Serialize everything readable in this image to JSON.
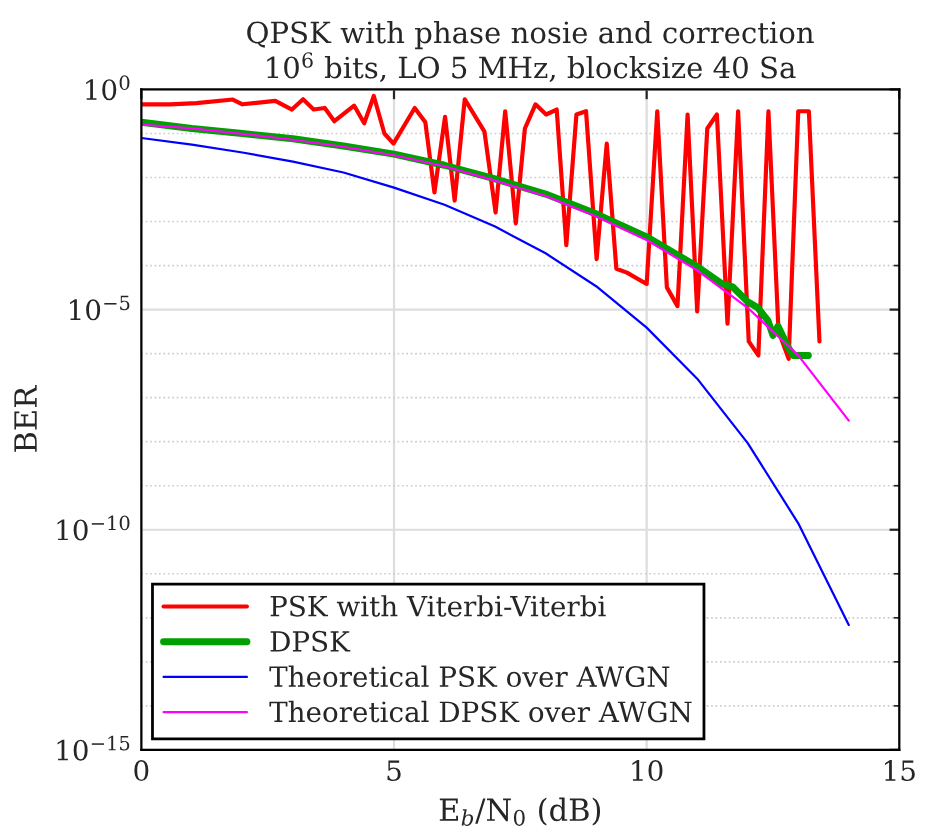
{
  "chart_data": {
    "type": "line",
    "title": "QPSK with phase nosie and correction",
    "subtitle": "10$^{6}$ bits, LO 5 MHz, blocksize 40 Sa",
    "xlabel": "E$_{b}$/N$_{0}$ (dB)",
    "ylabel": "BER",
    "log": "y",
    "xlim": [
      0,
      15
    ],
    "xticks": [
      0,
      5,
      10,
      15
    ],
    "ylim": [
      1e-15,
      1
    ],
    "yticks": [
      {
        "value": 1,
        "label": "10$^{0}$"
      },
      {
        "value": 0.1,
        "label": null
      },
      {
        "value": 0.01,
        "label": null
      },
      {
        "value": 0.001,
        "label": null
      },
      {
        "value": 0.0001,
        "label": null
      },
      {
        "value": 1e-05,
        "label": "10$^{−5}$"
      },
      {
        "value": 1e-06,
        "label": null
      },
      {
        "value": 1e-07,
        "label": null
      },
      {
        "value": 1e-08,
        "label": null
      },
      {
        "value": 1e-09,
        "label": null
      },
      {
        "value": 1e-10,
        "label": "10$^{−10}$"
      },
      {
        "value": 1e-11,
        "label": null
      },
      {
        "value": 1e-12,
        "label": null
      },
      {
        "value": 1e-13,
        "label": null
      },
      {
        "value": 1e-14,
        "label": null
      },
      {
        "value": 1e-15,
        "label": "10$^{−15}$"
      }
    ],
    "grid": true,
    "legend": "bottom left",
    "series": [
      {
        "name": "PSK with Viterbi-Viterbi",
        "color": "#ff0000",
        "x": [
          0,
          0.57,
          1.09,
          1.81,
          2.0,
          2.65,
          2.98,
          3.2,
          3.41,
          3.63,
          3.82,
          4.21,
          4.41,
          4.6,
          4.81,
          4.99,
          5.41,
          5.62,
          5.8,
          6.01,
          6.2,
          6.4,
          6.79,
          7.01,
          7.2,
          7.41,
          7.59,
          7.8,
          8.01,
          8.22,
          8.41,
          8.61,
          8.8,
          9.01,
          9.21,
          9.4,
          9.61,
          10.0,
          10.21,
          10.4,
          10.61,
          10.81,
          11.0,
          11.2,
          11.39,
          11.6,
          11.81,
          12.02,
          12.21,
          12.41,
          12.61,
          12.81,
          13.0,
          13.21,
          13.42
        ],
        "values": [
          0.46,
          0.46,
          0.49,
          0.59,
          0.46,
          0.55,
          0.35,
          0.6,
          0.35,
          0.38,
          0.19,
          0.43,
          0.17,
          0.71,
          0.1,
          0.059,
          0.38,
          0.18,
          0.0046,
          0.24,
          0.003,
          0.6,
          0.11,
          0.0016,
          0.32,
          0.00091,
          0.13,
          0.46,
          0.27,
          0.35,
          0.00029,
          0.27,
          0.32,
          0.00014,
          0.059,
          8.5e-05,
          6.9e-05,
          3.8e-05,
          0.32,
          3.2e-05,
          1.2e-05,
          0.27,
          9.1e-06,
          0.13,
          0.27,
          4.8e-06,
          0.32,
          1.9e-06,
          9.1e-07,
          0.32,
          3.2e-06,
          7.6e-07,
          0.32,
          0.32,
          1.9e-06
        ]
      },
      {
        "name": "DPSK",
        "color": "#00a000",
        "x": [
          0,
          1,
          2,
          3,
          4,
          5,
          6,
          7,
          8,
          9,
          10,
          11,
          11.5,
          11.7,
          12.0,
          12.2,
          12.4,
          12.5,
          12.6,
          12.8,
          12.9,
          13.2
        ],
        "values": [
          0.18,
          0.13,
          0.1,
          0.076,
          0.052,
          0.034,
          0.019,
          0.0093,
          0.0042,
          0.0015,
          0.00045,
          9.5e-05,
          3.8e-05,
          3.3e-05,
          1.5e-05,
          1.1e-05,
          5.6e-06,
          2.6e-06,
          4.2e-06,
          1.4e-06,
          9.1e-07,
          9.1e-07
        ]
      },
      {
        "name": "Theoretical PSK over AWGN",
        "color": "#0000ff",
        "x": [
          0,
          1,
          2,
          3,
          4,
          5,
          6,
          7,
          8,
          9,
          10,
          11,
          12,
          13,
          14
        ],
        "values": [
          0.079,
          0.056,
          0.037,
          0.023,
          0.013,
          0.0059,
          0.0024,
          0.00077,
          0.00019,
          3.4e-05,
          3.9e-06,
          2.7e-07,
          9.3e-09,
          1.4e-10,
          6.9e-13
        ]
      },
      {
        "name": "Theoretical DPSK over AWGN",
        "color": "#ff00ff",
        "x": [
          0,
          1,
          2,
          3,
          4,
          5,
          6,
          7,
          8,
          9,
          10,
          11,
          12,
          13,
          14
        ],
        "values": [
          0.16,
          0.13,
          0.098,
          0.072,
          0.05,
          0.032,
          0.018,
          0.0085,
          0.0038,
          0.0013,
          0.00038,
          7.8e-05,
          1.1e-05,
          9.1e-07,
          3e-08
        ]
      }
    ]
  }
}
